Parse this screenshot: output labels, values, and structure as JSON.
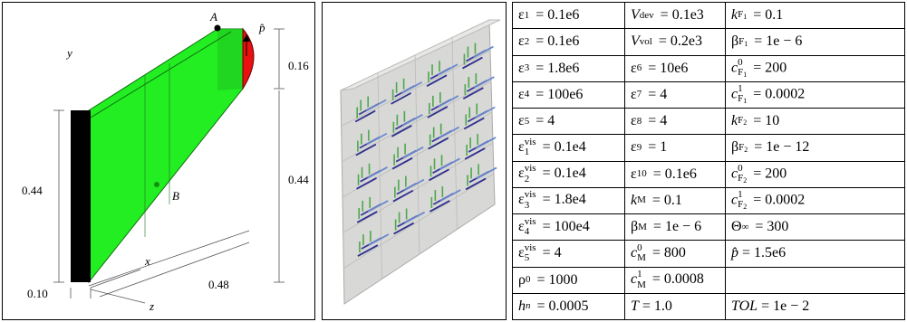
{
  "figure_left": {
    "labels": [
      "A",
      "p̂",
      "y",
      "0.16",
      "0.44",
      "0.44",
      "B",
      "x",
      "0.10",
      "z",
      "0.48"
    ]
  },
  "table": {
    "rows": [
      [
        {
          "base": "ε",
          "sub": "1",
          "eq": "= 0.1e6"
        },
        {
          "base": "V",
          "sub": "dev",
          "eq": "= 0.1e3"
        },
        {
          "base": "k",
          "sub": "F",
          "subsub": "1",
          "eq": "= 0.1"
        }
      ],
      [
        {
          "base": "ε",
          "sub": "2",
          "eq": "= 0.1e6"
        },
        {
          "base": "V",
          "sub": "vol",
          "eq": "= 0.2e3"
        },
        {
          "base": "β",
          "sub": "F",
          "subsub": "1",
          "eq": "= 1e − 6"
        }
      ],
      [
        {
          "base": "ε",
          "sub": "3",
          "eq": "= 1.8e6"
        },
        {
          "base": "ε",
          "sub": "6",
          "eq": "= 10e6"
        },
        {
          "base": "c",
          "sup": "0",
          "sub": "F",
          "subsub": "1",
          "eq": "= 200"
        }
      ],
      [
        {
          "base": "ε",
          "sub": "4",
          "eq": "= 100e6"
        },
        {
          "base": "ε",
          "sub": "7",
          "eq": "= 4"
        },
        {
          "base": "c",
          "sup": "1",
          "sub": "F",
          "subsub": "1",
          "eq": "= 0.0002"
        }
      ],
      [
        {
          "base": "ε",
          "sub": "5",
          "eq": "= 4"
        },
        {
          "base": "ε",
          "sub": "8",
          "eq": "= 4"
        },
        {
          "base": "k",
          "sub": "F",
          "subsub": "2",
          "eq": "= 10"
        }
      ],
      [
        {
          "base": "ε",
          "sup": "vis",
          "sub": "1",
          "eq": "= 0.1e4"
        },
        {
          "base": "ε",
          "sub": "9",
          "eq": "= 1"
        },
        {
          "base": "β",
          "sub": "F",
          "subsub": "2",
          "eq": "= 1e − 12"
        }
      ],
      [
        {
          "base": "ε",
          "sup": "vis",
          "sub": "2",
          "eq": "= 0.1e4"
        },
        {
          "base": "ε",
          "sub": "10",
          "eq": "= 0.1e6"
        },
        {
          "base": "c",
          "sup": "0",
          "sub": "F",
          "subsub": "2",
          "eq": "= 200"
        }
      ],
      [
        {
          "base": "ε",
          "sup": "vis",
          "sub": "3",
          "eq": "= 1.8e4"
        },
        {
          "base": "k",
          "sub": "M",
          "eq": "= 0.1"
        },
        {
          "base": "c",
          "sup": "1",
          "sub": "F",
          "subsub": "2",
          "eq": "= 0.0002"
        }
      ],
      [
        {
          "base": "ε",
          "sup": "vis",
          "sub": "4",
          "eq": "= 100e4"
        },
        {
          "base": "β",
          "sub": "M",
          "eq": "= 1e − 6"
        },
        {
          "base": "Θ",
          "sub": "∞",
          "eq": "= 300"
        }
      ],
      [
        {
          "base": "ε",
          "sup": "vis",
          "sub": "5",
          "eq": "= 4"
        },
        {
          "base": "c",
          "sup": "0",
          "sub": "M",
          "eq": "= 800"
        },
        {
          "base": "p̂",
          "eq": "= 1.5e6"
        }
      ],
      [
        {
          "base": "ρ",
          "sub": "0",
          "eq": "= 1000"
        },
        {
          "base": "c",
          "sup": "1",
          "sub": "M",
          "eq": "= 0.0008"
        },
        null
      ],
      [
        {
          "base": "h",
          "sub": "n",
          "eq": "= 0.0005"
        },
        {
          "base": "T",
          "eq": "= 1.0"
        },
        {
          "base": "TOL",
          "eq": "= 1e − 2"
        }
      ]
    ]
  }
}
